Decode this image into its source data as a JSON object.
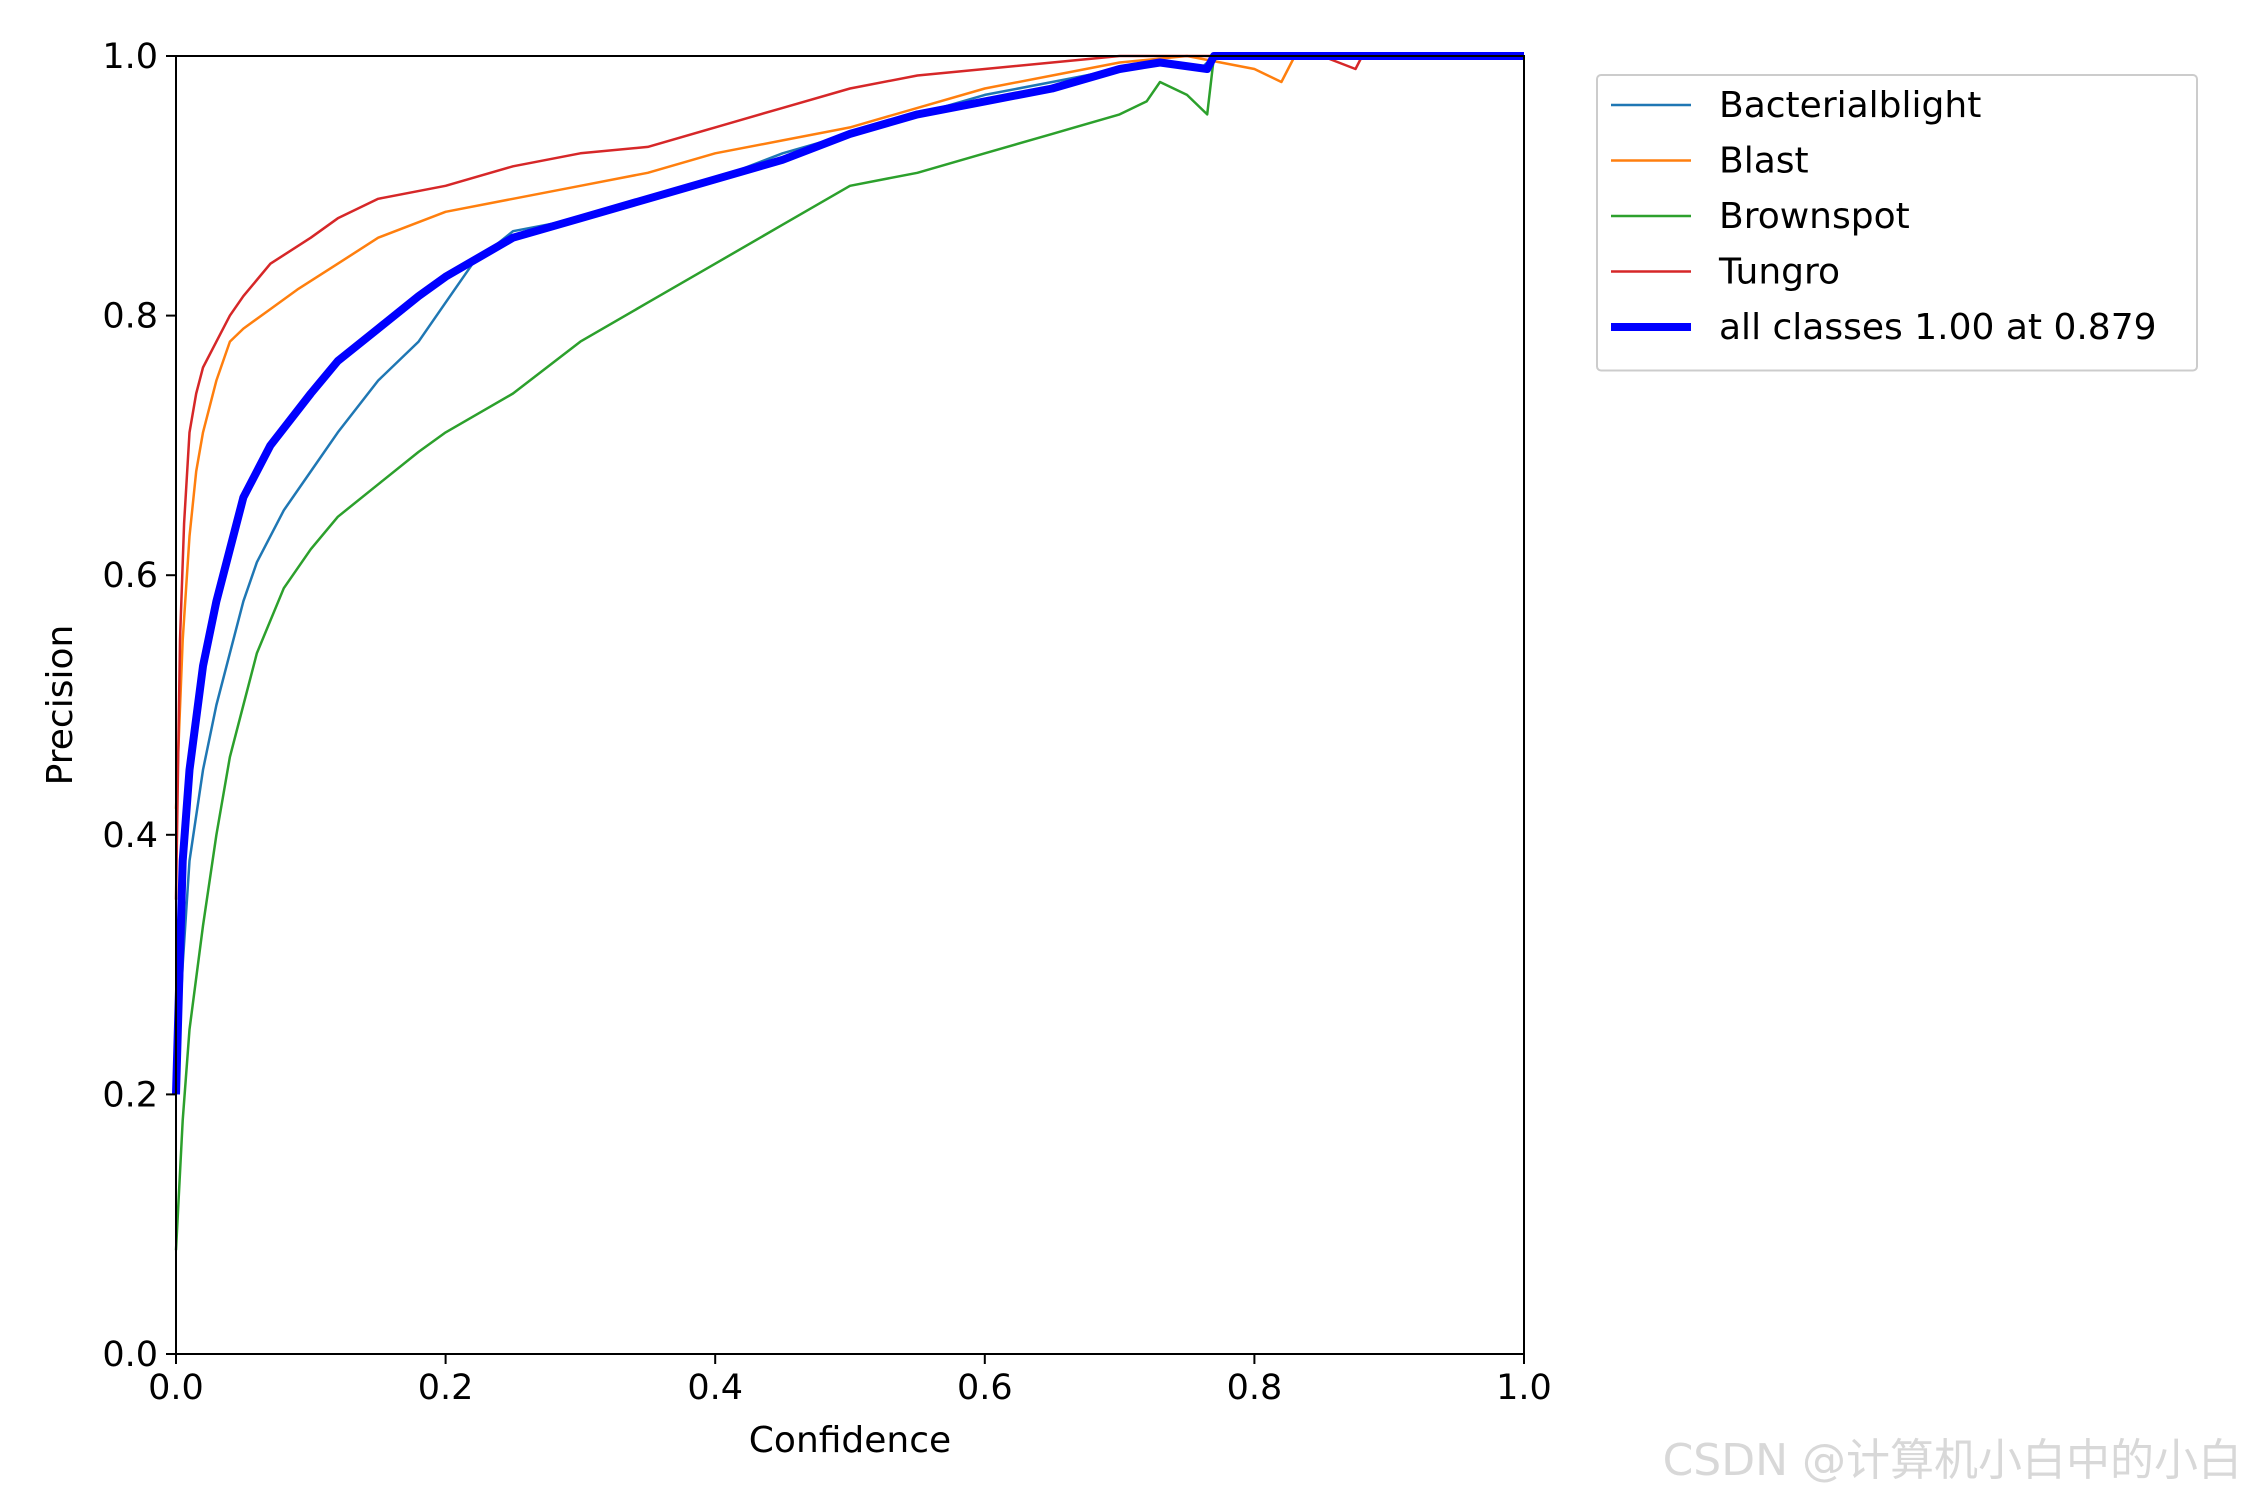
{
  "chart_data": {
    "type": "line",
    "xlabel": "Confidence",
    "ylabel": "Precision",
    "xlim": [
      0.0,
      1.0
    ],
    "ylim": [
      0.0,
      1.0
    ],
    "x_ticks": [
      "0.0",
      "0.2",
      "0.4",
      "0.6",
      "0.8",
      "1.0"
    ],
    "y_ticks": [
      "0.0",
      "0.2",
      "0.4",
      "0.6",
      "0.8",
      "1.0"
    ],
    "grid": false,
    "legend_position": "outside-top-right",
    "series": [
      {
        "name": "Bacterialblight",
        "color": "#1f77b4",
        "points": [
          [
            0.0,
            0.2
          ],
          [
            0.005,
            0.3
          ],
          [
            0.01,
            0.38
          ],
          [
            0.02,
            0.45
          ],
          [
            0.03,
            0.5
          ],
          [
            0.04,
            0.54
          ],
          [
            0.05,
            0.58
          ],
          [
            0.06,
            0.61
          ],
          [
            0.08,
            0.65
          ],
          [
            0.1,
            0.68
          ],
          [
            0.12,
            0.71
          ],
          [
            0.15,
            0.75
          ],
          [
            0.18,
            0.78
          ],
          [
            0.2,
            0.81
          ],
          [
            0.22,
            0.84
          ],
          [
            0.25,
            0.865
          ],
          [
            0.3,
            0.875
          ],
          [
            0.35,
            0.89
          ],
          [
            0.4,
            0.905
          ],
          [
            0.45,
            0.925
          ],
          [
            0.5,
            0.94
          ],
          [
            0.55,
            0.955
          ],
          [
            0.6,
            0.97
          ],
          [
            0.65,
            0.98
          ],
          [
            0.7,
            0.99
          ],
          [
            0.73,
            0.995
          ],
          [
            0.76,
            0.99
          ],
          [
            0.77,
            1.0
          ],
          [
            0.85,
            1.0
          ],
          [
            1.0,
            1.0
          ]
        ]
      },
      {
        "name": "Blast",
        "color": "#ff7f0e",
        "points": [
          [
            0.0,
            0.42
          ],
          [
            0.005,
            0.55
          ],
          [
            0.01,
            0.63
          ],
          [
            0.015,
            0.68
          ],
          [
            0.02,
            0.71
          ],
          [
            0.03,
            0.75
          ],
          [
            0.04,
            0.78
          ],
          [
            0.05,
            0.79
          ],
          [
            0.07,
            0.805
          ],
          [
            0.09,
            0.82
          ],
          [
            0.12,
            0.84
          ],
          [
            0.15,
            0.86
          ],
          [
            0.2,
            0.88
          ],
          [
            0.25,
            0.89
          ],
          [
            0.3,
            0.9
          ],
          [
            0.35,
            0.91
          ],
          [
            0.4,
            0.925
          ],
          [
            0.45,
            0.935
          ],
          [
            0.5,
            0.945
          ],
          [
            0.55,
            0.96
          ],
          [
            0.6,
            0.975
          ],
          [
            0.65,
            0.985
          ],
          [
            0.7,
            0.995
          ],
          [
            0.75,
            1.0
          ],
          [
            0.8,
            0.99
          ],
          [
            0.82,
            0.98
          ],
          [
            0.83,
            1.0
          ],
          [
            1.0,
            1.0
          ]
        ]
      },
      {
        "name": "Brownspot",
        "color": "#2ca02c",
        "points": [
          [
            0.0,
            0.08
          ],
          [
            0.005,
            0.18
          ],
          [
            0.01,
            0.25
          ],
          [
            0.02,
            0.33
          ],
          [
            0.03,
            0.4
          ],
          [
            0.04,
            0.46
          ],
          [
            0.05,
            0.5
          ],
          [
            0.06,
            0.54
          ],
          [
            0.08,
            0.59
          ],
          [
            0.1,
            0.62
          ],
          [
            0.12,
            0.645
          ],
          [
            0.15,
            0.67
          ],
          [
            0.18,
            0.695
          ],
          [
            0.2,
            0.71
          ],
          [
            0.25,
            0.74
          ],
          [
            0.3,
            0.78
          ],
          [
            0.35,
            0.81
          ],
          [
            0.4,
            0.84
          ],
          [
            0.45,
            0.87
          ],
          [
            0.5,
            0.9
          ],
          [
            0.55,
            0.91
          ],
          [
            0.6,
            0.925
          ],
          [
            0.65,
            0.94
          ],
          [
            0.7,
            0.955
          ],
          [
            0.72,
            0.965
          ],
          [
            0.73,
            0.98
          ],
          [
            0.75,
            0.97
          ],
          [
            0.765,
            0.955
          ],
          [
            0.77,
            1.0
          ],
          [
            1.0,
            1.0
          ]
        ]
      },
      {
        "name": "Tungro",
        "color": "#d62728",
        "points": [
          [
            0.0,
            0.35
          ],
          [
            0.003,
            0.55
          ],
          [
            0.006,
            0.64
          ],
          [
            0.01,
            0.71
          ],
          [
            0.015,
            0.74
          ],
          [
            0.02,
            0.76
          ],
          [
            0.03,
            0.78
          ],
          [
            0.04,
            0.8
          ],
          [
            0.05,
            0.815
          ],
          [
            0.07,
            0.84
          ],
          [
            0.1,
            0.86
          ],
          [
            0.12,
            0.875
          ],
          [
            0.15,
            0.89
          ],
          [
            0.2,
            0.9
          ],
          [
            0.25,
            0.915
          ],
          [
            0.3,
            0.925
          ],
          [
            0.35,
            0.93
          ],
          [
            0.4,
            0.945
          ],
          [
            0.45,
            0.96
          ],
          [
            0.5,
            0.975
          ],
          [
            0.55,
            0.985
          ],
          [
            0.6,
            0.99
          ],
          [
            0.65,
            0.995
          ],
          [
            0.7,
            1.0
          ],
          [
            0.85,
            1.0
          ],
          [
            0.875,
            0.99
          ],
          [
            0.88,
            1.0
          ],
          [
            1.0,
            1.0
          ]
        ]
      },
      {
        "name": "all classes 1.00 at 0.879",
        "color": "#0000ff",
        "bold": true,
        "points": [
          [
            0.0,
            0.2
          ],
          [
            0.005,
            0.38
          ],
          [
            0.01,
            0.45
          ],
          [
            0.02,
            0.53
          ],
          [
            0.03,
            0.58
          ],
          [
            0.04,
            0.62
          ],
          [
            0.05,
            0.66
          ],
          [
            0.07,
            0.7
          ],
          [
            0.1,
            0.74
          ],
          [
            0.12,
            0.765
          ],
          [
            0.15,
            0.79
          ],
          [
            0.18,
            0.815
          ],
          [
            0.2,
            0.83
          ],
          [
            0.25,
            0.86
          ],
          [
            0.3,
            0.875
          ],
          [
            0.35,
            0.89
          ],
          [
            0.4,
            0.905
          ],
          [
            0.45,
            0.92
          ],
          [
            0.5,
            0.94
          ],
          [
            0.55,
            0.955
          ],
          [
            0.6,
            0.965
          ],
          [
            0.65,
            0.975
          ],
          [
            0.7,
            0.99
          ],
          [
            0.73,
            0.995
          ],
          [
            0.765,
            0.99
          ],
          [
            0.77,
            1.0
          ],
          [
            0.85,
            1.0
          ],
          [
            0.879,
            1.0
          ],
          [
            1.0,
            1.0
          ]
        ]
      }
    ],
    "annotations": []
  },
  "watermark": "CSDN @计算机小白中的小白"
}
